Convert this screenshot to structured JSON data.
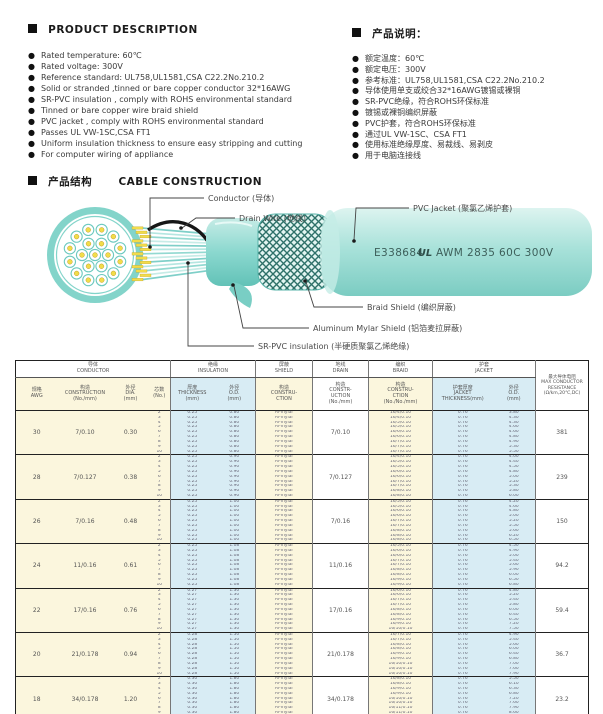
{
  "colors": {
    "accent_teal": "#8fd8ce",
    "table_cream": "#fbf6dd",
    "table_blue": "#d8ecf4",
    "conductor_yellow": "#f2dc4a",
    "drain_black": "#1a1a1a"
  },
  "sections": {
    "product_description": {
      "title": "PRODUCT DESCRIPTION",
      "items": [
        "Rated temperature: 60℃",
        "Rated voltage: 300V",
        "Reference standard: UL758,UL1581,CSA C22.2No.210.2",
        "Solid or stranded ,tinned or bare copper conductor 32*16AWG",
        "SR-PVC insulation , comply with ROHS environmental standard",
        "Tinned or bare copper wire braid shield",
        "PVC jacket , comply with ROHS environmental standard",
        "Passes UL VW-1SC,CSA FT1",
        "Uniform insulation thickness to ensure easy stripping and cutting",
        "For computer wiring of appliance"
      ]
    },
    "product_notes": {
      "title": "产品说明：",
      "items": [
        "额定温度：60℃",
        "额定电压：300V",
        "参考标准：UL758,UL1581,CSA C22.2No.210.2",
        "导体使用单支或绞合32*16AWG镀锡或裸铜",
        "SR-PVC绝缘，符合ROHS环保标准",
        "镀锡或裸铜编织屏蔽",
        "PVC护套，符合ROHS环保标准",
        "通过UL VW-1SC、CSA FT1",
        "使用标准绝缘厚度、易裁线、易剥皮",
        "用于电脑连接线"
      ]
    },
    "construction": {
      "title_zh": "产品结构",
      "title_en": "CABLE CONSTRUCTION",
      "labels": {
        "conductor": "Conductor (导体)",
        "drain": "Drain Wire (地线)",
        "pvc_jacket": "PVC Jacket (聚氯乙烯护套)",
        "braid_shield": "Braid Shield (编织屏蔽)",
        "mylar_shield": "Aluminum Mylar Shield (铝箔麦拉屏蔽)",
        "sr_pvc": "SR-PVC insulation (半硬质聚氯乙烯绝缘)"
      },
      "jacket_print": {
        "cert": "E338684",
        "ul": "UL",
        "spec": "AWM 2835 60C 300V"
      }
    }
  },
  "table": {
    "header": {
      "groups": {
        "conductor": "导体\nCONDUCTOR",
        "insulation": "绝缘\nINSULATION",
        "shield": "屏蔽\nSHIELD",
        "drain": "地线\nDRAIN",
        "braid": "编织\nBRAID",
        "jacket": "护套\nJACKET"
      },
      "cols": {
        "awg": "规格\nAWG",
        "construction": "构造\nCONSTRUCTION\n(No./mm)",
        "dia": "外径\nDIA.\n(mm)",
        "cores": "芯数\n(No.)",
        "thickness": "厚度\nTHICKNESS\n(mm)",
        "ins_od": "外径\nO.D.\n(mm)",
        "shield_con": "构造\nCONSTRU-\nCTION",
        "drain_con": "构造\nCONSTR-\nUCTION\n(No./mm)",
        "braid_con": "构造\nCONSTRU-\nCTION\n(No./No./mm)",
        "jkt_thickness": "护套厚度\nJACKET\nTHICKNESS(mm)",
        "jkt_od": "外径\nO.D.\n(mm)",
        "resistance": "最大导体电阻\nMAX CONDUCTOR\nRESISTANCE\n(Ω/km,20℃,DC)"
      }
    },
    "groups": [
      {
        "awg": "30",
        "construction": "7/0.10",
        "dia": "0.30",
        "drain": "7/0.10",
        "resistance": "381",
        "cores": [
          "2",
          "3",
          "4",
          "5",
          "6",
          "7",
          "8",
          "9",
          "10"
        ],
        "ins_t": [
          "0.25",
          "0.25",
          "0.25",
          "0.25",
          "0.25",
          "0.25",
          "0.25",
          "0.25",
          "0.25"
        ],
        "ins_od": [
          "0.80",
          "0.80",
          "0.80",
          "0.80",
          "0.80",
          "0.80",
          "0.80",
          "0.80",
          "0.80"
        ],
        "shield": [
          "Al-mylar",
          "Al-mylar",
          "Al-mylar",
          "Al-mylar",
          "Al-mylar",
          "Al-mylar",
          "Al-mylar",
          "Al-mylar",
          "Al-mylar"
        ],
        "braid": [
          "16/4/0.10",
          "16/4/0.10",
          "16/5/0.10",
          "16/5/0.10",
          "16/6/0.10",
          "16/6/0.10",
          "16/7/0.10",
          "16/7/0.10",
          "16/7/0.10"
        ],
        "jkt_t": [
          "0.76",
          "0.76",
          "0.76",
          "0.76",
          "0.76",
          "0.76",
          "0.76",
          "0.76",
          "0.76"
        ],
        "od": [
          "3.80",
          "4.30",
          "4.30",
          "4.60",
          "4.60",
          "4.80",
          "4.90",
          "5.30",
          "5.50"
        ]
      },
      {
        "awg": "28",
        "construction": "7/0.127",
        "dia": "0.38",
        "drain": "7/0.127",
        "resistance": "239",
        "cores": [
          "2",
          "3",
          "4",
          "5",
          "6",
          "7",
          "8",
          "9",
          "10"
        ],
        "ins_t": [
          "0.25",
          "0.25",
          "0.25",
          "0.25",
          "0.25",
          "0.25",
          "0.25",
          "0.25",
          "0.25"
        ],
        "ins_od": [
          "0.90",
          "0.90",
          "0.90",
          "0.90",
          "0.90",
          "0.90",
          "0.90",
          "0.90",
          "0.90"
        ],
        "shield": [
          "Al-mylar",
          "Al-mylar",
          "Al-mylar",
          "Al-mylar",
          "Al-mylar",
          "Al-mylar",
          "Al-mylar",
          "Al-mylar",
          "Al-mylar"
        ],
        "braid": [
          "16/4/0.10",
          "16/5/0.10",
          "16/5/0.10",
          "16/6/0.10",
          "16/6/0.10",
          "16/7/0.10",
          "16/7/0.10",
          "16/8/0.10",
          "16/8/0.10"
        ],
        "jkt_t": [
          "0.76",
          "0.76",
          "0.76",
          "0.76",
          "0.76",
          "0.76",
          "0.76",
          "0.76",
          "0.76"
        ],
        "od": [
          "4.00",
          "4.40",
          "4.50",
          "4.80",
          "5.00",
          "5.20",
          "5.30",
          "5.80",
          "6.00"
        ]
      },
      {
        "awg": "26",
        "construction": "7/0.16",
        "dia": "0.48",
        "drain": "7/0.16",
        "resistance": "150",
        "cores": [
          "2",
          "3",
          "4",
          "5",
          "6",
          "7",
          "8",
          "9",
          "10"
        ],
        "ins_t": [
          "0.25",
          "0.25",
          "0.25",
          "0.25",
          "0.25",
          "0.25",
          "0.25",
          "0.25",
          "0.25"
        ],
        "ins_od": [
          "1.00",
          "1.00",
          "1.00",
          "1.00",
          "1.00",
          "1.00",
          "1.00",
          "1.00",
          "1.00"
        ],
        "shield": [
          "Al-mylar",
          "Al-mylar",
          "Al-mylar",
          "Al-mylar",
          "Al-mylar",
          "Al-mylar",
          "Al-mylar",
          "Al-mylar",
          "Al-mylar"
        ],
        "braid": [
          "16/5/0.10",
          "16/5/0.10",
          "16/6/0.10",
          "16/6/0.10",
          "16/7/0.10",
          "16/7/0.10",
          "16/8/0.10",
          "16/8/0.10",
          "16/8/0.10"
        ],
        "jkt_t": [
          "0.76",
          "0.76",
          "0.76",
          "0.76",
          "0.76",
          "0.76",
          "0.76",
          "0.76",
          "0.76"
        ],
        "od": [
          "4.20",
          "4.60",
          "4.80",
          "5.00",
          "5.20",
          "5.50",
          "5.60",
          "6.20",
          "6.50"
        ]
      },
      {
        "awg": "24",
        "construction": "11/0.16",
        "dia": "0.61",
        "drain": "11/0.16",
        "resistance": "94.2",
        "cores": [
          "2",
          "3",
          "4",
          "5",
          "6",
          "7",
          "8",
          "9",
          "10"
        ],
        "ins_t": [
          "0.25",
          "0.25",
          "0.25",
          "0.25",
          "0.25",
          "0.25",
          "0.25",
          "0.25",
          "0.25"
        ],
        "ins_od": [
          "1.08",
          "1.08",
          "1.08",
          "1.08",
          "1.08",
          "1.08",
          "1.08",
          "1.08",
          "1.08"
        ],
        "shield": [
          "Al-mylar",
          "Al-mylar",
          "Al-mylar",
          "Al-mylar",
          "Al-mylar",
          "Al-mylar",
          "Al-mylar",
          "Al-mylar",
          "Al-mylar"
        ],
        "braid": [
          "16/5/0.10",
          "16/6/0.10",
          "16/6/0.10",
          "16/7/0.10",
          "16/7/0.10",
          "16/8/0.10",
          "16/8/0.10",
          "16/9/0.10",
          "16/9/0.10"
        ],
        "jkt_t": [
          "0.76",
          "0.76",
          "0.76",
          "0.76",
          "0.76",
          "0.76",
          "0.76",
          "0.76",
          "0.76"
        ],
        "od": [
          "4.50",
          "4.90",
          "5.00",
          "5.40",
          "5.60",
          "5.90",
          "6.00",
          "6.50",
          "6.80"
        ]
      },
      {
        "awg": "22",
        "construction": "17/0.16",
        "dia": "0.76",
        "drain": "17/0.16",
        "resistance": "59.4",
        "cores": [
          "2",
          "3",
          "4",
          "5",
          "6",
          "7",
          "8",
          "9",
          "10"
        ],
        "ins_t": [
          "0.27",
          "0.27",
          "0.27",
          "0.27",
          "0.27",
          "0.27",
          "0.27",
          "0.27",
          "0.27"
        ],
        "ins_od": [
          "1.30",
          "1.30",
          "1.30",
          "1.30",
          "1.30",
          "1.30",
          "1.30",
          "1.30",
          "1.30"
        ],
        "shield": [
          "Al-mylar",
          "Al-mylar",
          "Al-mylar",
          "Al-mylar",
          "Al-mylar",
          "Al-mylar",
          "Al-mylar",
          "Al-mylar",
          "Al-mylar"
        ],
        "braid": [
          "16/6/0.10",
          "16/6/0.10",
          "16/7/0.10",
          "16/7/0.10",
          "16/8/0.10",
          "16/8/0.10",
          "16/9/0.10",
          "16/9/0.10",
          "16/10/0.10"
        ],
        "jkt_t": [
          "0.76",
          "0.76",
          "0.76",
          "0.76",
          "0.76",
          "0.76",
          "0.76",
          "0.76",
          "0.76"
        ],
        "od": [
          "4.80",
          "5.20",
          "5.40",
          "5.80",
          "6.00",
          "6.40",
          "6.50",
          "7.20",
          "7.50"
        ]
      },
      {
        "awg": "20",
        "construction": "21/0.178",
        "dia": "0.94",
        "drain": "21/0.178",
        "resistance": "36.7",
        "cores": [
          "2",
          "3",
          "4",
          "5",
          "6",
          "7",
          "8",
          "9",
          "10"
        ],
        "ins_t": [
          "0.28",
          "0.28",
          "0.28",
          "0.28",
          "0.28",
          "0.28",
          "0.28",
          "0.28",
          "0.28"
        ],
        "ins_od": [
          "1.50",
          "1.50",
          "1.50",
          "1.50",
          "1.50",
          "1.50",
          "1.50",
          "1.50",
          "1.50"
        ],
        "shield": [
          "Al-mylar",
          "Al-mylar",
          "Al-mylar",
          "Al-mylar",
          "Al-mylar",
          "Al-mylar",
          "Al-mylar",
          "Al-mylar",
          "Al-mylar"
        ],
        "braid": [
          "16/7/0.10",
          "16/7/0.10",
          "16/8/0.10",
          "16/8/0.10",
          "16/9/0.10",
          "16/9/0.10",
          "16/10/0.10",
          "16/10/0.10",
          "16/10/0.10"
        ],
        "jkt_t": [
          "0.76",
          "0.76",
          "0.76",
          "0.76",
          "0.76",
          "0.76",
          "0.76",
          "0.76",
          "0.76"
        ],
        "od": [
          "4.90",
          "5.40",
          "5.60",
          "6.00",
          "6.40",
          "6.80",
          "7.00",
          "7.60",
          "7.90"
        ]
      },
      {
        "awg": "18",
        "construction": "34/0.178",
        "dia": "1.20",
        "drain": "34/0.178",
        "resistance": "23.2",
        "cores": [
          "2",
          "3",
          "4",
          "5",
          "6",
          "7",
          "8",
          "9",
          "10"
        ],
        "ins_t": [
          "0.30",
          "0.30",
          "0.30",
          "0.30",
          "0.30",
          "0.30",
          "0.30",
          "0.30",
          "0.30"
        ],
        "ins_od": [
          "1.80",
          "1.80",
          "1.80",
          "1.80",
          "1.80",
          "1.80",
          "1.80",
          "1.80",
          "1.80"
        ],
        "shield": [
          "Al-mylar",
          "Al-mylar",
          "Al-mylar",
          "Al-mylar",
          "Al-mylar",
          "Al-mylar",
          "Al-mylar",
          "Al-mylar",
          "Al-mylar"
        ],
        "braid": [
          "16/8/0.10",
          "16/8/0.10",
          "16/9/0.10",
          "16/9/0.10",
          "16/10/0.10",
          "16/10/0.10",
          "16/11/0.10",
          "16/11/0.10",
          "16/12/0.10"
        ],
        "jkt_t": [
          "0.76",
          "0.76",
          "0.76",
          "0.76",
          "0.76",
          "0.76",
          "0.76",
          "0.76",
          "0.76"
        ],
        "od": [
          "5.50",
          "6.10",
          "6.30",
          "6.80",
          "7.20",
          "7.60",
          "7.90",
          "8.60",
          "9.30"
        ]
      }
    ]
  }
}
